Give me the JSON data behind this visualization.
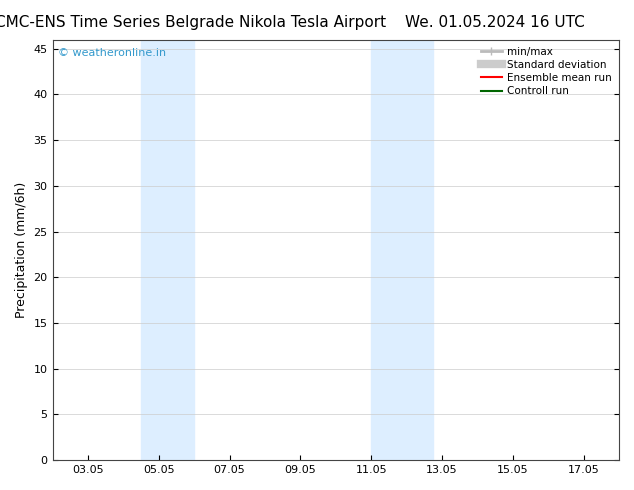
{
  "title_left": "CMC-ENS Time Series Belgrade Nikola Tesla Airport",
  "title_right": "We. 01.05.2024 16 UTC",
  "ylabel": "Precipitation (mm/6h)",
  "xlim_left": "2024-05-02",
  "xlim_right": "2024-05-18",
  "ylim": [
    0,
    46
  ],
  "yticks": [
    0,
    5,
    10,
    15,
    20,
    25,
    30,
    35,
    40,
    45
  ],
  "xtick_labels": [
    "03.05",
    "05.05",
    "07.05",
    "09.05",
    "11.05",
    "13.05",
    "15.05",
    "17.05"
  ],
  "xtick_positions": [
    3,
    5,
    7,
    9,
    11,
    13,
    15,
    17
  ],
  "blue_bands": [
    {
      "xmin": 4.5,
      "xmax": 6.0
    },
    {
      "xmin": 11.0,
      "xmax": 12.75
    }
  ],
  "band_color": "#ddeeff",
  "watermark": "© weatheronline.in",
  "watermark_color": "#3399cc",
  "legend_items": [
    {
      "label": "min/max",
      "color": "#bbbbbb",
      "lw": 2
    },
    {
      "label": "Standard deviation",
      "color": "#cccccc",
      "lw": 6
    },
    {
      "label": "Ensemble mean run",
      "color": "#ff0000",
      "lw": 1.5
    },
    {
      "label": "Controll run",
      "color": "#006600",
      "lw": 1.5
    }
  ],
  "bg_color": "#ffffff",
  "grid_color": "#cccccc",
  "title_fontsize": 11,
  "axis_fontsize": 9,
  "tick_fontsize": 8
}
